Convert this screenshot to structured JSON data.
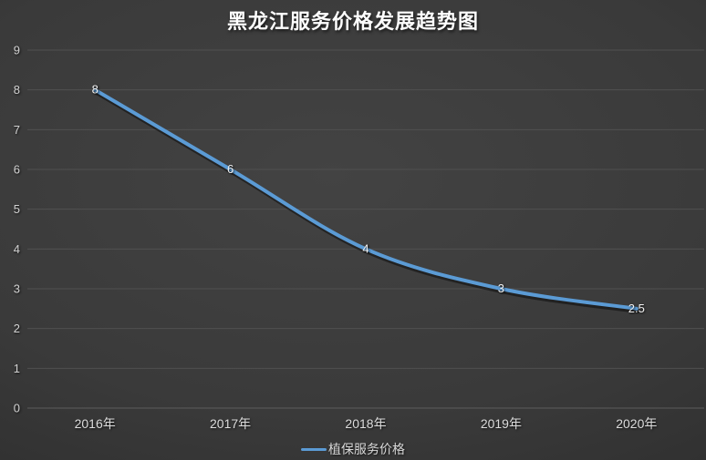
{
  "chart_data": {
    "type": "line",
    "title": "黑龙江服务价格发展趋势图",
    "categories": [
      "2016年",
      "2017年",
      "2018年",
      "2019年",
      "2020年"
    ],
    "series": [
      {
        "name": "植保服务价格",
        "values": [
          8,
          6,
          4,
          3,
          2.5
        ],
        "labels": [
          "8",
          "6",
          "4",
          "3",
          "2.5"
        ]
      }
    ],
    "y_ticks": [
      "0",
      "1",
      "2",
      "3",
      "4",
      "5",
      "6",
      "7",
      "8",
      "9"
    ],
    "ylim": [
      0,
      9
    ],
    "grid": true,
    "smooth": true,
    "legend_position": "bottom",
    "data_labels": true,
    "colors": {
      "line": "#5B9BD5",
      "background_center": "#434343",
      "background_mid": "#3a3a3a",
      "background_edge": "#242424",
      "gridline": "#505050",
      "axis_line": "#5c5c5c",
      "tick_label": "#d2d2d2",
      "category_label": "#dcdcdc",
      "data_label": "#f2f2f2",
      "title": "#ffffff",
      "legend_text": "#d9d9d9"
    }
  }
}
